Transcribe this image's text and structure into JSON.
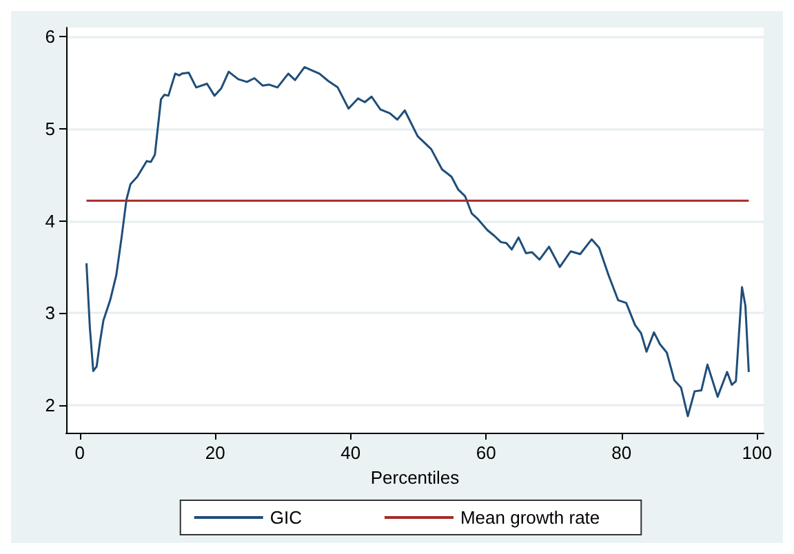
{
  "chart_data": {
    "type": "line",
    "xlabel": "Percentiles",
    "xlim": [
      -2,
      101
    ],
    "xticks": [
      0,
      20,
      40,
      60,
      80,
      100
    ],
    "ylim": [
      1.7,
      6.1
    ],
    "yticks": [
      2,
      3,
      4,
      5,
      6
    ],
    "grid": "y",
    "legend": "bottom",
    "marker": "none",
    "line_style": "solid",
    "series": [
      {
        "name": "GIC",
        "color": "#1f4e79",
        "x": [
          1,
          1.5,
          2,
          2.5,
          3,
          3.5,
          4.5,
          5.4,
          6.2,
          6.9,
          7.5,
          8.5,
          9.9,
          10.5,
          11.1,
          12,
          12.5,
          13.1,
          14.1,
          14.7,
          15.1,
          16.1,
          17.2,
          18.8,
          19.9,
          20.9,
          22,
          23.4,
          24.7,
          25.8,
          27,
          28,
          29.2,
          30.8,
          31.8,
          33.2,
          34.1,
          35.4,
          36.7,
          38.1,
          39.7,
          41.1,
          42.1,
          43.1,
          44.4,
          45.8,
          46.9,
          48,
          49.9,
          51.9,
          53.5,
          54.9,
          55.9,
          56.9,
          57.9,
          58.8,
          60.2,
          61.2,
          62.2,
          63,
          63.8,
          64.8,
          65.9,
          66.8,
          67.9,
          69.3,
          70.9,
          72.5,
          73.9,
          75.6,
          76.7,
          78.1,
          79.5,
          80.7,
          82,
          82.9,
          83.7,
          84.8,
          85.7,
          86.7,
          87.8,
          88.8,
          89.8,
          90.8,
          91.8,
          92.7,
          94.2,
          95.6,
          96.3,
          96.9,
          97.8,
          98.3,
          98.8
        ],
        "values": [
          3.54,
          2.84,
          2.37,
          2.42,
          2.69,
          2.92,
          3.14,
          3.41,
          3.83,
          4.23,
          4.4,
          4.48,
          4.65,
          4.64,
          4.72,
          5.32,
          5.37,
          5.36,
          5.6,
          5.58,
          5.6,
          5.61,
          5.45,
          5.49,
          5.36,
          5.44,
          5.62,
          5.54,
          5.51,
          5.55,
          5.47,
          5.48,
          5.45,
          5.6,
          5.53,
          5.67,
          5.64,
          5.6,
          5.52,
          5.45,
          5.22,
          5.33,
          5.29,
          5.35,
          5.21,
          5.17,
          5.1,
          5.2,
          4.92,
          4.78,
          4.56,
          4.48,
          4.34,
          4.27,
          4.08,
          4.02,
          3.9,
          3.84,
          3.77,
          3.76,
          3.69,
          3.82,
          3.65,
          3.66,
          3.58,
          3.72,
          3.5,
          3.67,
          3.64,
          3.8,
          3.71,
          3.41,
          3.14,
          3.11,
          2.87,
          2.78,
          2.58,
          2.79,
          2.66,
          2.57,
          2.27,
          2.19,
          1.88,
          2.15,
          2.16,
          2.44,
          2.09,
          2.36,
          2.22,
          2.26,
          3.28,
          3.08,
          2.36
        ]
      },
      {
        "name": "Mean growth rate",
        "color": "#a52a2a",
        "x": [
          1,
          98.8
        ],
        "values": [
          4.22,
          4.22
        ]
      }
    ]
  }
}
